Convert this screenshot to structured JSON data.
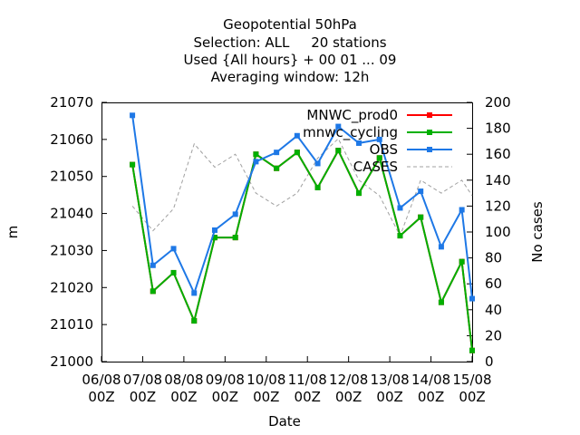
{
  "chart_data": {
    "type": "line",
    "title_lines": [
      "Geopotential 50hPa",
      "Selection: ALL     20 stations",
      "Used {All hours} + 00 01 ... 09",
      "Averaging window: 12h"
    ],
    "xlabel": "Date",
    "ylabel": "m",
    "y2label": "No cases",
    "ylim": [
      21000,
      21070
    ],
    "y_ticks": [
      21000,
      21010,
      21020,
      21030,
      21040,
      21050,
      21060,
      21070
    ],
    "y2lim": [
      0,
      200
    ],
    "y2_ticks": [
      0,
      20,
      40,
      60,
      80,
      100,
      120,
      140,
      160,
      180,
      200
    ],
    "xlim": [
      0,
      9
    ],
    "x_ticks": [
      {
        "x": 0,
        "line1": "06/08",
        "line2": "00Z"
      },
      {
        "x": 1,
        "line1": "07/08",
        "line2": "00Z"
      },
      {
        "x": 2,
        "line1": "08/08",
        "line2": "00Z"
      },
      {
        "x": 3,
        "line1": "09/08",
        "line2": "00Z"
      },
      {
        "x": 4,
        "line1": "10/08",
        "line2": "00Z"
      },
      {
        "x": 5,
        "line1": "11/08",
        "line2": "00Z"
      },
      {
        "x": 6,
        "line1": "12/08",
        "line2": "00Z"
      },
      {
        "x": 7,
        "line1": "13/08",
        "line2": "00Z"
      },
      {
        "x": 8,
        "line1": "14/08",
        "line2": "00Z"
      },
      {
        "x": 9,
        "line1": "15/08",
        "line2": "00Z"
      }
    ],
    "grid": false,
    "legend_position": "top-right",
    "x": [
      0.75,
      1.25,
      1.75,
      2.25,
      2.75,
      3.25,
      3.75,
      4.25,
      4.75,
      5.25,
      5.75,
      6.25,
      6.75,
      7.25,
      7.75,
      8.25,
      8.75,
      9.0
    ],
    "series": [
      {
        "name": "MNWC_prod0",
        "color": "#ff0000",
        "axis": "y1",
        "style": "solid",
        "values": [
          21053.2,
          21019.0,
          21024.0,
          21011.0,
          21033.5,
          21033.5,
          21056.0,
          21052.2,
          21056.5,
          21047.0,
          21057.0,
          21045.5,
          21055.0,
          21034.0,
          21039.0,
          21016.0,
          21027.0,
          21003.0
        ]
      },
      {
        "name": "mnwc_cycling",
        "color": "#00b000",
        "axis": "y1",
        "style": "solid",
        "values": [
          21053.2,
          21019.0,
          21024.0,
          21011.0,
          21033.5,
          21033.5,
          21056.0,
          21052.2,
          21056.5,
          21047.0,
          21057.0,
          21045.5,
          21055.0,
          21034.0,
          21039.0,
          21016.0,
          21027.0,
          21003.0
        ]
      },
      {
        "name": "OBS",
        "color": "#1e78e6",
        "axis": "y1",
        "style": "solid",
        "values": [
          21066.5,
          21026.0,
          21030.5,
          21018.5,
          21035.5,
          21039.8,
          21054.0,
          21056.5,
          21061.0,
          21053.5,
          21063.5,
          21059.0,
          21060.0,
          21041.5,
          21046.0,
          21031.0,
          21041.0,
          21017.0
        ]
      },
      {
        "name": "CASES",
        "color": "#a0a0a0",
        "axis": "y2",
        "style": "dashed",
        "values": [
          120,
          101,
          118,
          168,
          150,
          160,
          130,
          120,
          130,
          157,
          172,
          140,
          128,
          97,
          140,
          130,
          140,
          128
        ]
      }
    ]
  }
}
